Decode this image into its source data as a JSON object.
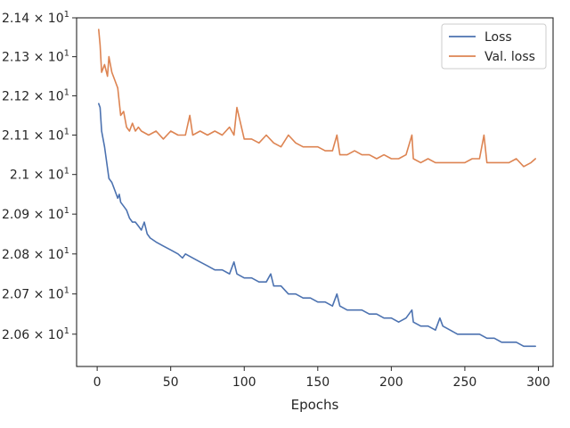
{
  "chart_data": {
    "type": "line",
    "title": "",
    "xlabel": "Epochs",
    "ylabel": "",
    "xlim": [
      -14,
      310
    ],
    "ylim": [
      20.52,
      21.4
    ],
    "y_scale": "log",
    "grid": false,
    "legend_position": "top-right",
    "x_ticks": [
      0,
      50,
      100,
      150,
      200,
      250,
      300
    ],
    "y_ticks": [
      {
        "value": 20.6,
        "label": "2.06 × 10^1"
      },
      {
        "value": 20.7,
        "label": "2.07 × 10^1"
      },
      {
        "value": 20.8,
        "label": "2.08 × 10^1"
      },
      {
        "value": 20.9,
        "label": "2.09 × 10^1"
      },
      {
        "value": 21.0,
        "label": "2.1 × 10^1"
      },
      {
        "value": 21.1,
        "label": "2.11 × 10^1"
      },
      {
        "value": 21.2,
        "label": "2.12 × 10^1"
      },
      {
        "value": 21.3,
        "label": "2.13 × 10^1"
      },
      {
        "value": 21.4,
        "label": "2.14 × 10^1"
      }
    ],
    "series": [
      {
        "name": "Loss",
        "color": "#4c72b0",
        "x": [
          1,
          2,
          3,
          5,
          8,
          10,
          12,
          14,
          15,
          16,
          18,
          20,
          22,
          24,
          26,
          28,
          30,
          32,
          34,
          36,
          40,
          45,
          50,
          55,
          58,
          60,
          65,
          70,
          75,
          80,
          85,
          90,
          93,
          95,
          100,
          105,
          110,
          115,
          118,
          120,
          125,
          130,
          135,
          140,
          145,
          150,
          155,
          160,
          163,
          165,
          170,
          175,
          180,
          185,
          190,
          195,
          200,
          205,
          210,
          214,
          215,
          220,
          225,
          230,
          233,
          235,
          240,
          245,
          250,
          255,
          260,
          265,
          270,
          275,
          280,
          285,
          290,
          295,
          298
        ],
        "values": [
          21.18,
          21.17,
          21.11,
          21.07,
          20.99,
          20.98,
          20.96,
          20.94,
          20.95,
          20.93,
          20.92,
          20.91,
          20.89,
          20.88,
          20.88,
          20.87,
          20.86,
          20.88,
          20.85,
          20.84,
          20.83,
          20.82,
          20.81,
          20.8,
          20.79,
          20.8,
          20.79,
          20.78,
          20.77,
          20.76,
          20.76,
          20.75,
          20.78,
          20.75,
          20.74,
          20.74,
          20.73,
          20.73,
          20.75,
          20.72,
          20.72,
          20.7,
          20.7,
          20.69,
          20.69,
          20.68,
          20.68,
          20.67,
          20.7,
          20.67,
          20.66,
          20.66,
          20.66,
          20.65,
          20.65,
          20.64,
          20.64,
          20.63,
          20.64,
          20.66,
          20.63,
          20.62,
          20.62,
          20.61,
          20.64,
          20.62,
          20.61,
          20.6,
          20.6,
          20.6,
          20.6,
          20.59,
          20.59,
          20.58,
          20.58,
          20.58,
          20.57,
          20.57,
          20.57
        ]
      },
      {
        "name": "Val. loss",
        "color": "#dd8452",
        "x": [
          1,
          2,
          3,
          5,
          7,
          8,
          10,
          12,
          14,
          16,
          18,
          20,
          22,
          24,
          26,
          28,
          30,
          35,
          40,
          45,
          50,
          55,
          60,
          63,
          65,
          70,
          75,
          80,
          85,
          90,
          93,
          95,
          100,
          105,
          110,
          115,
          120,
          125,
          130,
          135,
          140,
          145,
          150,
          155,
          160,
          163,
          165,
          170,
          175,
          180,
          185,
          190,
          195,
          200,
          205,
          210,
          214,
          215,
          220,
          225,
          230,
          235,
          240,
          245,
          250,
          255,
          260,
          263,
          265,
          270,
          275,
          280,
          285,
          290,
          295,
          298
        ],
        "values": [
          21.37,
          21.33,
          21.26,
          21.28,
          21.25,
          21.3,
          21.26,
          21.24,
          21.22,
          21.15,
          21.16,
          21.12,
          21.11,
          21.13,
          21.11,
          21.12,
          21.11,
          21.1,
          21.11,
          21.09,
          21.11,
          21.1,
          21.1,
          21.15,
          21.1,
          21.11,
          21.1,
          21.11,
          21.1,
          21.12,
          21.1,
          21.17,
          21.09,
          21.09,
          21.08,
          21.1,
          21.08,
          21.07,
          21.1,
          21.08,
          21.07,
          21.07,
          21.07,
          21.06,
          21.06,
          21.1,
          21.05,
          21.05,
          21.06,
          21.05,
          21.05,
          21.04,
          21.05,
          21.04,
          21.04,
          21.05,
          21.1,
          21.04,
          21.03,
          21.04,
          21.03,
          21.03,
          21.03,
          21.03,
          21.03,
          21.04,
          21.04,
          21.1,
          21.03,
          21.03,
          21.03,
          21.03,
          21.04,
          21.02,
          21.03,
          21.04
        ]
      }
    ]
  }
}
